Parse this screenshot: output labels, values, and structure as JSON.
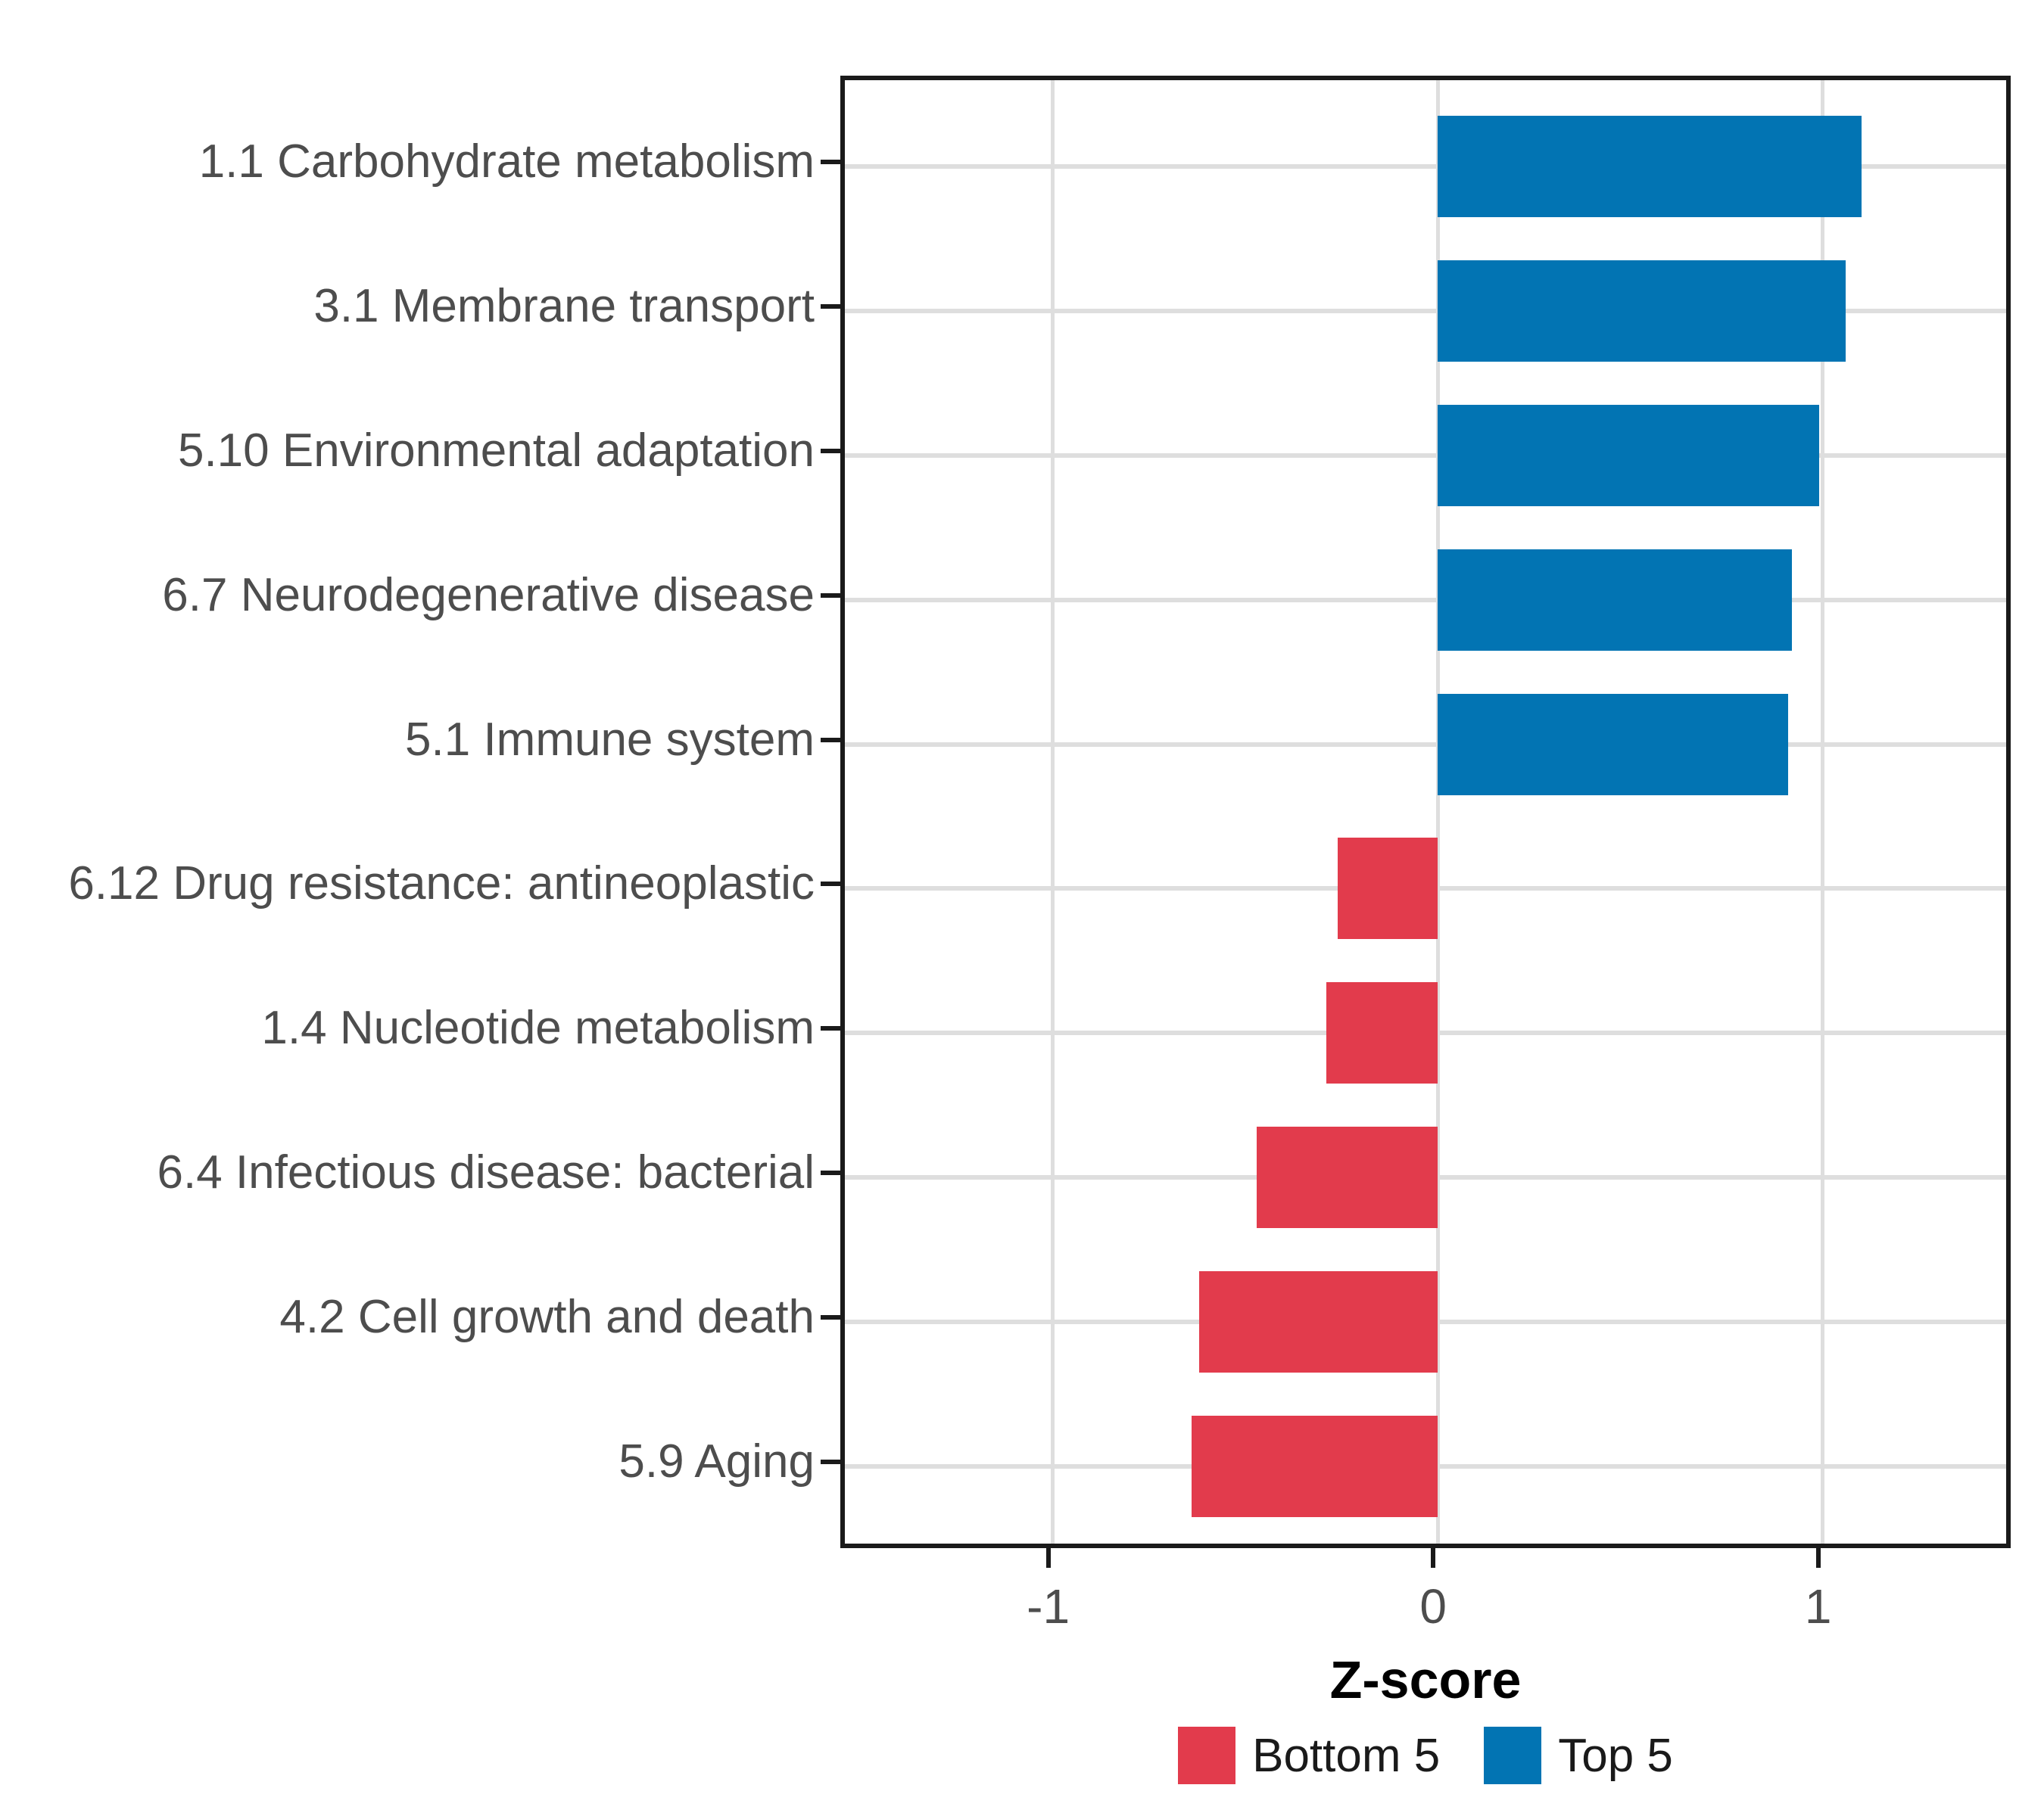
{
  "chart_data": {
    "type": "bar",
    "orientation": "horizontal",
    "title": "",
    "xlabel": "Z-score",
    "ylabel": "",
    "xlim": [
      -1.54,
      1.5
    ],
    "grid": true,
    "legend_position": "bottom",
    "x_ticks": [
      {
        "label": "-1",
        "value": -1
      },
      {
        "label": "0",
        "value": 0
      },
      {
        "label": "1",
        "value": 1
      }
    ],
    "categories": [
      "1.1 Carbohydrate metabolism",
      "3.1 Membrane transport",
      "5.10 Environmental adaptation",
      "6.7 Neurodegenerative disease",
      "5.1 Immune system",
      "6.12 Drug resistance: antineoplastic",
      "1.4 Nucleotide metabolism",
      "6.4 Infectious disease: bacterial",
      "4.2 Cell growth and death",
      "5.9 Aging"
    ],
    "series": [
      {
        "name": "Z-score",
        "values": [
          1.1,
          1.06,
          0.99,
          0.92,
          0.91,
          -0.26,
          -0.29,
          -0.47,
          -0.62,
          -0.64
        ]
      }
    ],
    "groups": [
      "Top 5",
      "Top 5",
      "Top 5",
      "Top 5",
      "Top 5",
      "Bottom 5",
      "Bottom 5",
      "Bottom 5",
      "Bottom 5",
      "Bottom 5"
    ],
    "colors": {
      "Bottom 5": "#E23B4C",
      "Top 5": "#0274B3"
    },
    "legend": [
      {
        "label": "Bottom 5",
        "color_key": "Bottom 5"
      },
      {
        "label": "Top 5",
        "color_key": "Top 5"
      }
    ],
    "style_colors": {
      "grid": "#DEDEDE",
      "panel_border": "#1A1A1A",
      "axis_text": "#4D4D4D",
      "axis_title": "#000000"
    }
  }
}
